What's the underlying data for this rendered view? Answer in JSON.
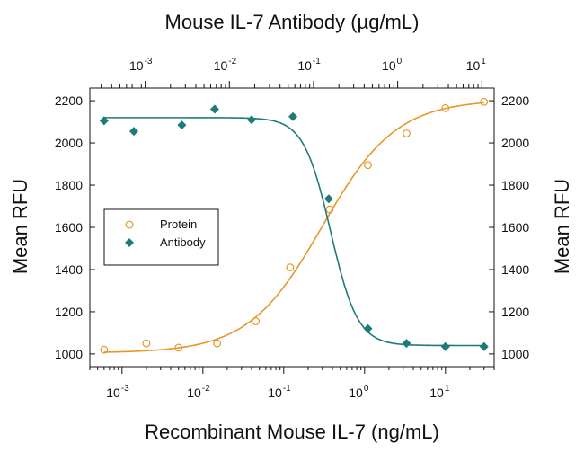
{
  "chart_data": {
    "type": "scatter",
    "title": "Mouse IL-7 Antibody (µg/mL)",
    "xlabel": "Recombinant Mouse IL-7 (ng/mL)",
    "ylabel": "Mean RFU",
    "ylabel_right": "Mean RFU",
    "x_scale": "log",
    "xlim": [
      0.0004,
      40
    ],
    "ylim": [
      940,
      2260
    ],
    "yticks": [
      1000,
      1200,
      1400,
      1600,
      1800,
      2000,
      2200
    ],
    "xticks_bottom": [
      {
        "base": "10",
        "exp": "-3",
        "value": 0.001
      },
      {
        "base": "10",
        "exp": "-2",
        "value": 0.01
      },
      {
        "base": "10",
        "exp": "-1",
        "value": 0.1
      },
      {
        "base": "10",
        "exp": "0",
        "value": 1
      },
      {
        "base": "10",
        "exp": "1",
        "value": 10
      }
    ],
    "top_axis_scale": "log",
    "top_axis_ticks": [
      {
        "base": "10",
        "exp": "-3",
        "value": 0.001
      },
      {
        "base": "10",
        "exp": "-2",
        "value": 0.01
      },
      {
        "base": "10",
        "exp": "-1",
        "value": 0.1
      },
      {
        "base": "10",
        "exp": "0",
        "value": 1
      },
      {
        "base": "10",
        "exp": "1",
        "value": 10
      }
    ],
    "top_axis_lim": [
      0.00022,
      14
    ],
    "grid": false,
    "legend_position": "center-left",
    "series": [
      {
        "name": "Protein",
        "marker": "open-circle",
        "color": "#e8962a",
        "points": [
          {
            "x": 0.0006,
            "y": 1020
          },
          {
            "x": 0.002,
            "y": 1050
          },
          {
            "x": 0.005,
            "y": 1030
          },
          {
            "x": 0.015,
            "y": 1050
          },
          {
            "x": 0.045,
            "y": 1155
          },
          {
            "x": 0.12,
            "y": 1410
          },
          {
            "x": 0.37,
            "y": 1685
          },
          {
            "x": 1.1,
            "y": 1895
          },
          {
            "x": 3.3,
            "y": 2045
          },
          {
            "x": 10,
            "y": 2165
          },
          {
            "x": 30,
            "y": 2195
          }
        ],
        "fit": {
          "bottom": 1005,
          "top": 2205,
          "ec50": 0.3,
          "hill": 0.95
        }
      },
      {
        "name": "Antibody",
        "marker": "filled-diamond",
        "color": "#1e7b78",
        "points": [
          {
            "x": 0.0006,
            "y": 2105
          },
          {
            "x": 0.0014,
            "y": 2055
          },
          {
            "x": 0.0055,
            "y": 2085
          },
          {
            "x": 0.014,
            "y": 2160
          },
          {
            "x": 0.04,
            "y": 2110
          },
          {
            "x": 0.13,
            "y": 2125
          },
          {
            "x": 0.36,
            "y": 1735
          },
          {
            "x": 1.1,
            "y": 1120
          },
          {
            "x": 3.3,
            "y": 1050
          },
          {
            "x": 10,
            "y": 1035
          },
          {
            "x": 30,
            "y": 1035
          }
        ],
        "fit": {
          "bottom": 1040,
          "top": 2120,
          "ec50": 0.38,
          "hill": -2.6
        }
      }
    ]
  }
}
